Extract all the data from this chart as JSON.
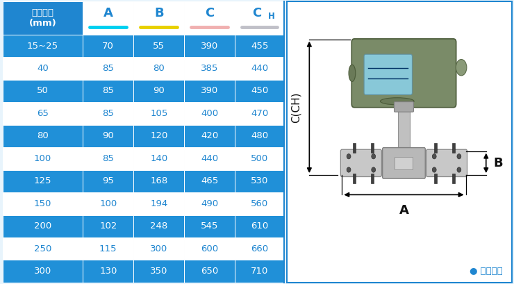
{
  "header_bg": "#1f86d0",
  "row_bg_dark": "#2090d8",
  "row_bg_light": "#ffffff",
  "header_text_color": "#ffffff",
  "dark_row_text_color": "#ffffff",
  "light_row_text_color": "#1f86d0",
  "col_header_label_color": "#1f86d0",
  "col_headers": [
    "仪表口径\n(mm)",
    "A",
    "B",
    "C",
    "CH"
  ],
  "col_underline_colors": [
    "",
    "#00d0f0",
    "#e8d000",
    "#f0b0b0",
    "#c0c0c8"
  ],
  "rows": [
    [
      "15~25",
      "70",
      "55",
      "390",
      "455"
    ],
    [
      "40",
      "85",
      "80",
      "385",
      "440"
    ],
    [
      "50",
      "85",
      "90",
      "390",
      "450"
    ],
    [
      "65",
      "85",
      "105",
      "400",
      "470"
    ],
    [
      "80",
      "90",
      "120",
      "420",
      "480"
    ],
    [
      "100",
      "85",
      "140",
      "440",
      "500"
    ],
    [
      "125",
      "95",
      "168",
      "465",
      "530"
    ],
    [
      "150",
      "100",
      "194",
      "490",
      "560"
    ],
    [
      "200",
      "102",
      "248",
      "545",
      "610"
    ],
    [
      "250",
      "115",
      "300",
      "600",
      "660"
    ],
    [
      "300",
      "130",
      "350",
      "650",
      "710"
    ]
  ],
  "dark_rows": [
    0,
    2,
    4,
    6,
    8,
    10
  ],
  "arrow_color": "#000000",
  "label_A": "A",
  "label_B": "B",
  "label_C": "C(CH)",
  "footnote": "● 常规仪表",
  "footnote_color": "#1f86d0",
  "fig_bg": "#e8f4fc",
  "panel_right_bg": "#ffffff",
  "panel_right_border": "#1f86d0"
}
